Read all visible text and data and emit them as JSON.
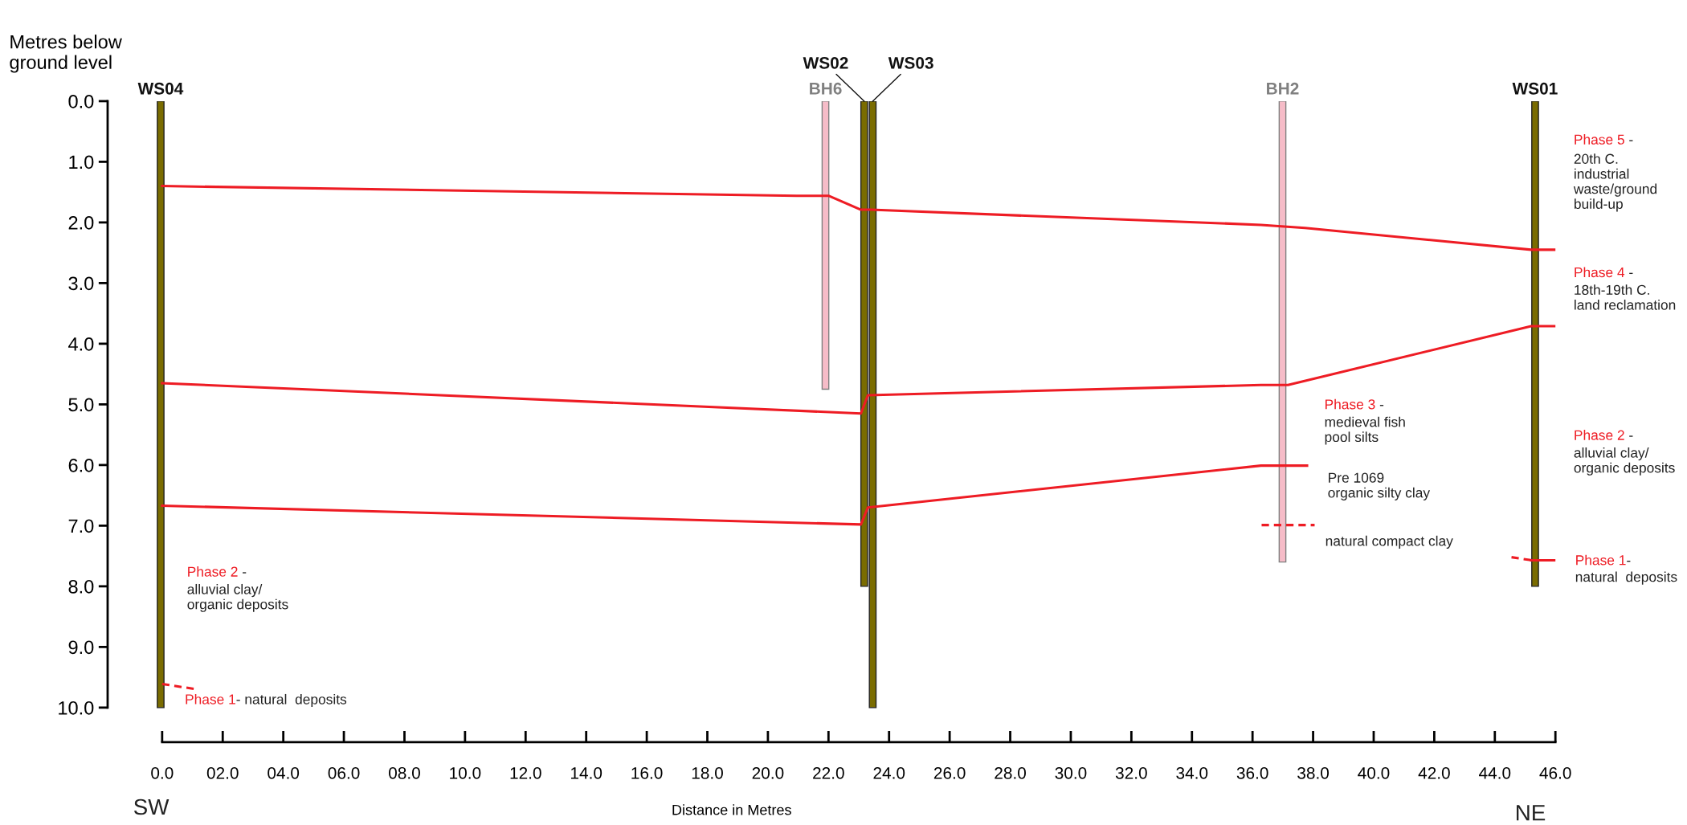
{
  "chart_data": {
    "type": "line",
    "xlabel": "Distance in Metres",
    "ylabel": "Metres below\nground level",
    "xlim": [
      -1.8,
      46.0
    ],
    "ylim": [
      10.57,
      0.0
    ],
    "xticks": [
      {
        "value": 0,
        "label": "0.0"
      },
      {
        "value": 2,
        "label": "02.0"
      },
      {
        "value": 4,
        "label": "04.0"
      },
      {
        "value": 6,
        "label": "06.0"
      },
      {
        "value": 8,
        "label": "08.0"
      },
      {
        "value": 10,
        "label": "10.0"
      },
      {
        "value": 12,
        "label": "12.0"
      },
      {
        "value": 14,
        "label": "14.0"
      },
      {
        "value": 16,
        "label": "16.0"
      },
      {
        "value": 18,
        "label": "18.0"
      },
      {
        "value": 20,
        "label": "20.0"
      },
      {
        "value": 22,
        "label": "22.0"
      },
      {
        "value": 24,
        "label": "24.0"
      },
      {
        "value": 26,
        "label": "26.0"
      },
      {
        "value": 28,
        "label": "28.0"
      },
      {
        "value": 30,
        "label": "30.0"
      },
      {
        "value": 32,
        "label": "32.0"
      },
      {
        "value": 34,
        "label": "34.0"
      },
      {
        "value": 36,
        "label": "36.0"
      },
      {
        "value": 38,
        "label": "38.0"
      },
      {
        "value": 40,
        "label": "40.0"
      },
      {
        "value": 42,
        "label": "42.0"
      },
      {
        "value": 44,
        "label": "44.0"
      },
      {
        "value": 46,
        "label": "46.0"
      }
    ],
    "yticks": [
      {
        "value": 0,
        "label": "0.0"
      },
      {
        "value": 1,
        "label": "1.0"
      },
      {
        "value": 2,
        "label": "2.0"
      },
      {
        "value": 3,
        "label": "3.0"
      },
      {
        "value": 4,
        "label": "4.0"
      },
      {
        "value": 5,
        "label": "5.0"
      },
      {
        "value": 6,
        "label": "6.0"
      },
      {
        "value": 7,
        "label": "7.0"
      },
      {
        "value": 8,
        "label": "8.0"
      },
      {
        "value": 9,
        "label": "9.0"
      },
      {
        "value": 10,
        "label": "10.0"
      }
    ],
    "grid": false,
    "legend": false,
    "marker": "none",
    "series": [
      {
        "type": "bar",
        "name": "WS04",
        "color": "#7a6c00",
        "x": [
          -0.05
        ],
        "values": [
          10.0
        ],
        "base": [
          0
        ]
      },
      {
        "type": "bar",
        "name": "BH6",
        "color": "#f6bcc8",
        "x": [
          21.9
        ],
        "values": [
          4.75
        ],
        "base": [
          0
        ]
      },
      {
        "type": "bar",
        "name": "WS02",
        "color": "#7a6c00",
        "x": [
          23.18
        ],
        "values": [
          8.0
        ],
        "base": [
          0
        ]
      },
      {
        "type": "bar",
        "name": "WS03",
        "color": "#7a6c00",
        "x": [
          23.46
        ],
        "values": [
          10.0
        ],
        "base": [
          0
        ]
      },
      {
        "type": "bar",
        "name": "BH2",
        "color": "#f6bcc8",
        "x": [
          36.99
        ],
        "values": [
          7.6
        ],
        "base": [
          0
        ]
      },
      {
        "type": "bar",
        "name": "WS01",
        "color": "#7a6c00",
        "x": [
          45.33
        ],
        "values": [
          8.0
        ],
        "base": [
          0
        ]
      },
      {
        "color": "#ee1c24",
        "line_style": "solid",
        "x": [
          0.0,
          20.95,
          22.0,
          23.07,
          23.4,
          36.28,
          37.73,
          45.2,
          46.0
        ],
        "values": [
          1.4,
          1.56,
          1.56,
          1.79,
          1.79,
          2.04,
          2.09,
          2.45,
          2.45
        ]
      },
      {
        "color": "#ee1c24",
        "line_style": "solid",
        "x": [
          0.0,
          23.07,
          23.3,
          36.28,
          37.17,
          45.2,
          46.0
        ],
        "values": [
          4.65,
          5.15,
          4.85,
          4.68,
          4.68,
          3.71,
          3.71
        ]
      },
      {
        "color": "#ee1c24",
        "line_style": "solid",
        "x": [
          0.0,
          23.07,
          23.3,
          36.28,
          37.8
        ],
        "values": [
          6.67,
          6.98,
          6.7,
          6.01,
          6.01
        ]
      },
      {
        "color": "#ee1c24",
        "line_style": "dashed",
        "x": [
          0.0,
          1.17
        ],
        "values": [
          9.61,
          9.7
        ]
      },
      {
        "color": "#ee1c24",
        "line_style": "dashed",
        "x": [
          36.3,
          38.05
        ],
        "values": [
          6.99,
          6.99
        ]
      },
      {
        "color": "#ee1c24",
        "line_style": "dashed",
        "x": [
          44.55,
          45.2
        ],
        "values": [
          7.52,
          7.57
        ]
      },
      {
        "color": "#ee1c24",
        "line_style": "solid",
        "x": [
          45.2,
          46.0
        ],
        "values": [
          7.57,
          7.57
        ]
      }
    ],
    "annotations": [
      "Phase 2 -\nalluvial clay/\norganic deposits",
      "Phase 1- natural  deposits",
      "Phase 3 -\nmedieval fish\npool silts",
      "Pre 1069\norganic silty clay",
      "natural compact clay",
      "Phase 5 -\n20th C.\nindustrial\nwaste/ground\nbuild-up",
      "Phase 4 -\n18th-19th C.\nland reclamation",
      "Phase 2 -\nalluvial clay/\norganic deposits",
      "Phase 1-\nnatural  deposits",
      "SW",
      "NE"
    ]
  }
}
